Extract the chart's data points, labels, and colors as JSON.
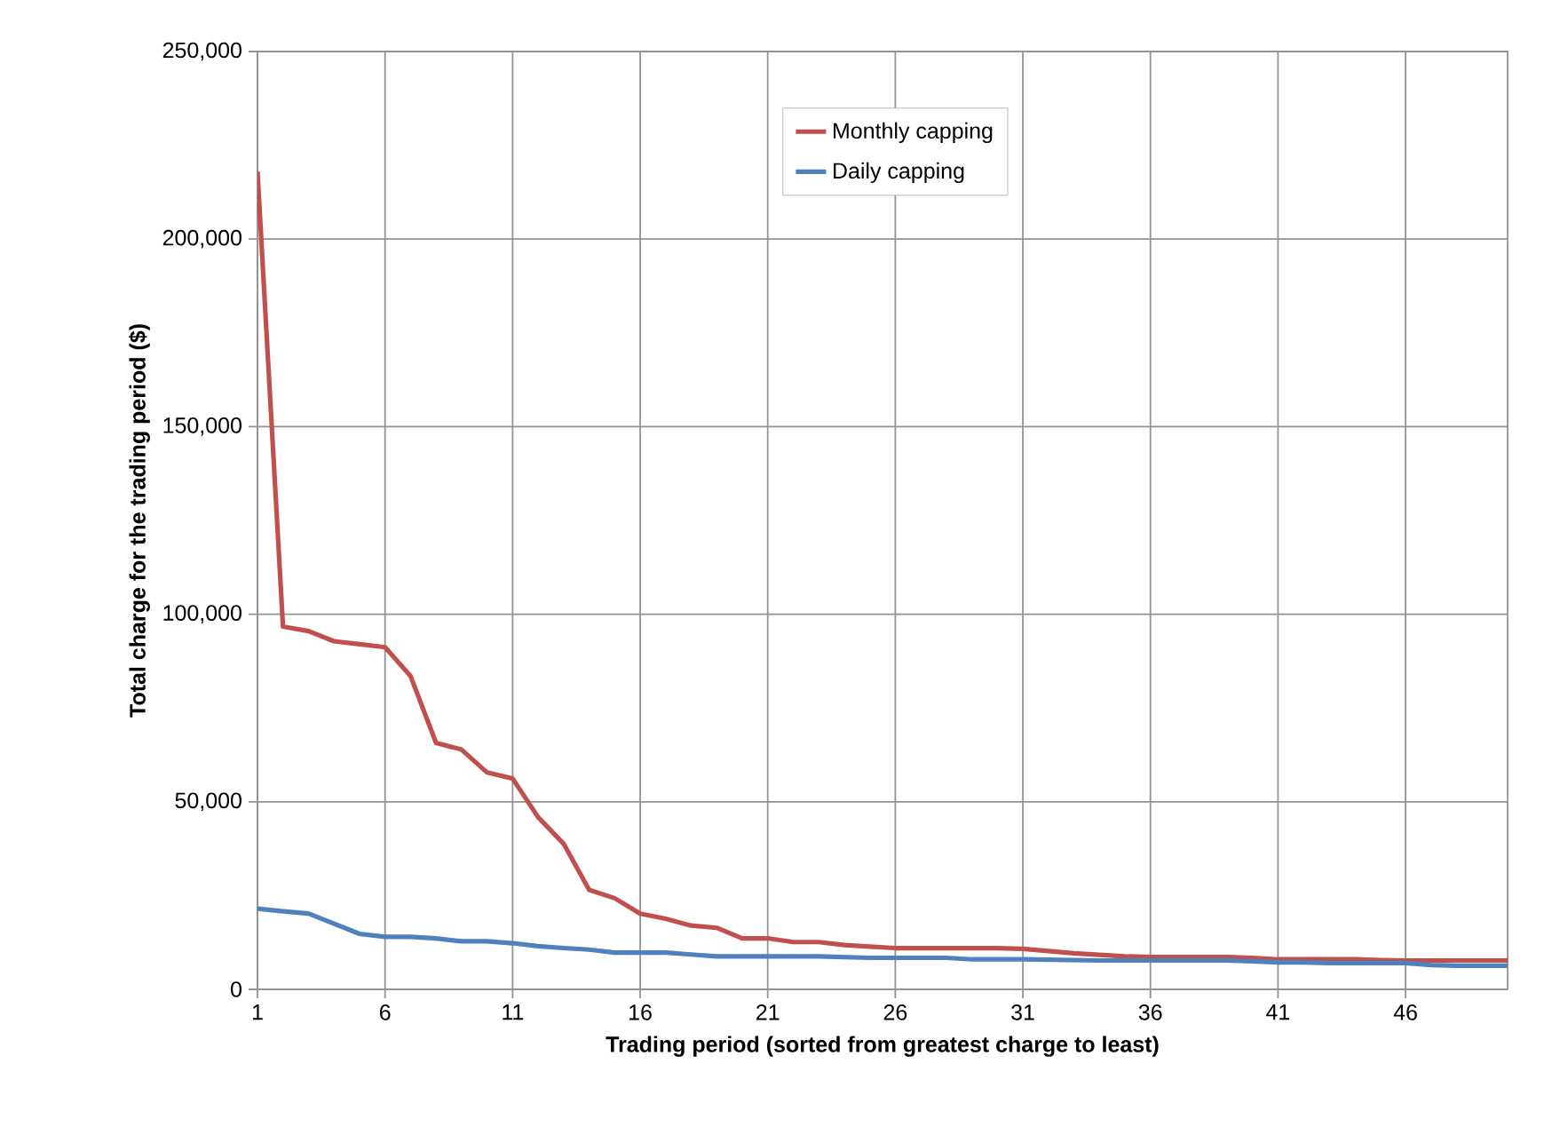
{
  "chart_data": {
    "type": "line",
    "xlabel": "Trading period (sorted from greatest charge to least)",
    "ylabel": "Total charge for the trading period ($)",
    "x": [
      1,
      2,
      3,
      4,
      5,
      6,
      7,
      8,
      9,
      10,
      11,
      12,
      13,
      14,
      15,
      16,
      17,
      18,
      19,
      20,
      21,
      22,
      23,
      24,
      25,
      26,
      27,
      28,
      29,
      30,
      31,
      32,
      33,
      34,
      35,
      36,
      37,
      38,
      39,
      40,
      41,
      42,
      43,
      44,
      45,
      46,
      47,
      48,
      49,
      50
    ],
    "series": [
      {
        "name": "Monthly capping",
        "color": "#c0504d",
        "values": [
          218000,
          96700,
          95500,
          92800,
          92000,
          91200,
          83500,
          65700,
          63900,
          57800,
          56200,
          45900,
          38800,
          26500,
          24300,
          20200,
          18800,
          17000,
          16400,
          13600,
          13600,
          12600,
          12600,
          11800,
          11400,
          11000,
          11000,
          11000,
          11000,
          11000,
          10800,
          10200,
          9600,
          9200,
          8800,
          8600,
          8600,
          8600,
          8600,
          8400,
          8000,
          8000,
          8000,
          8000,
          7800,
          7700,
          7700,
          7700,
          7700,
          7700
        ]
      },
      {
        "name": "Daily capping",
        "color": "#4f81bd",
        "values": [
          21500,
          20800,
          20200,
          17500,
          14800,
          14000,
          14000,
          13600,
          12800,
          12800,
          12300,
          11500,
          11000,
          10600,
          9800,
          9800,
          9800,
          9300,
          8800,
          8800,
          8800,
          8800,
          8800,
          8600,
          8400,
          8400,
          8400,
          8400,
          8000,
          8000,
          8000,
          7900,
          7800,
          7700,
          7700,
          7700,
          7700,
          7700,
          7700,
          7500,
          7200,
          7200,
          7000,
          7000,
          7000,
          7000,
          6500,
          6300,
          6300,
          6300
        ]
      }
    ],
    "xlim": [
      1,
      50
    ],
    "xticks": [
      1,
      6,
      11,
      16,
      21,
      26,
      31,
      36,
      41,
      46
    ],
    "ylim": [
      0,
      250000
    ],
    "yticks": [
      {
        "value": 0,
        "label": "0"
      },
      {
        "value": 50000,
        "label": "50,000"
      },
      {
        "value": 100000,
        "label": "100,000"
      },
      {
        "value": 150000,
        "label": "150,000"
      },
      {
        "value": 200000,
        "label": "200,000"
      },
      {
        "value": 250000,
        "label": "250,000"
      }
    ],
    "grid": true,
    "legend": "top",
    "marker": "none",
    "line_style": "solid"
  }
}
